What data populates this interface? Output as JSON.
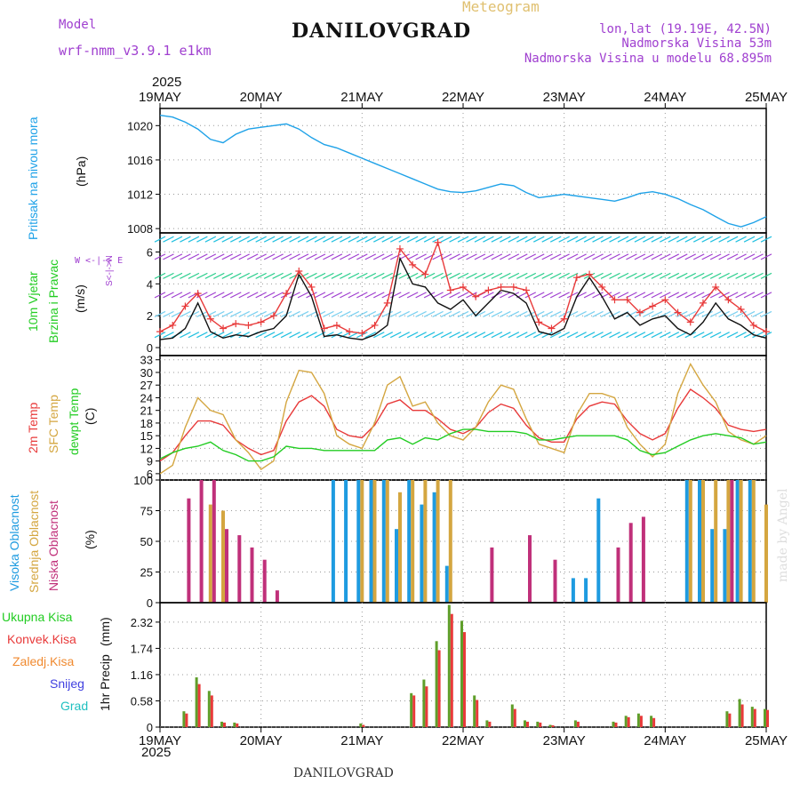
{
  "header": {
    "model_label": "Model",
    "model_name": "wrf-nmm_v3.9.1 e1km",
    "location_title": "DANILOVGRAD",
    "meteogram_label": "Meteogram",
    "lonlat": "lon,lat (19.19E, 42.5N)",
    "altitude": "Nadmorska Visina 53m",
    "model_altitude": "Nadmorska Visina u modelu 68.895m",
    "credit": "made by Angel",
    "footer_location": "DANILOVGRAD",
    "year_top": "2025",
    "year_bottom": "2025"
  },
  "colors": {
    "pressure": "#1fa2e8",
    "temp2m": "#e83a3a",
    "sfc_temp": "#d4a640",
    "dewpoint": "#22cc22",
    "high_cloud": "#1e9be0",
    "mid_cloud": "#d4a640",
    "low_cloud": "#c0307a",
    "total_precip": "#5f9e2a",
    "convective": "#e83a3a",
    "freezing": "#f08a30",
    "snow": "#4040e0",
    "hail": "#20c0c0",
    "wind_speed": "#111111",
    "gust": "#e83a3a",
    "purple_text": "#a040d0"
  },
  "chart_data": [
    {
      "type": "line",
      "panel": "pressure",
      "ylabel_name": "Pritisak na nivou mora",
      "unit": "(hPa)",
      "x_ticks": [
        "19MAY",
        "20MAY",
        "21MAY",
        "22MAY",
        "23MAY",
        "24MAY",
        "25MAY"
      ],
      "ylim": [
        1007.5,
        1022
      ],
      "yticks": [
        1008,
        1012,
        1016,
        1020
      ],
      "grid": true,
      "x_hours": [
        0,
        3,
        6,
        9,
        12,
        15,
        18,
        21,
        24,
        27,
        30,
        33,
        36,
        39,
        42,
        45,
        48,
        51,
        54,
        57,
        60,
        63,
        66,
        69,
        72,
        75,
        78,
        81,
        84,
        87,
        90,
        93,
        96,
        99,
        102,
        105,
        108,
        111,
        114,
        117,
        120,
        123,
        126,
        129,
        132,
        135,
        138,
        141,
        144
      ],
      "series": [
        {
          "values": [
            1021.2,
            1021.0,
            1020.4,
            1019.6,
            1018.4,
            1018.0,
            1019.0,
            1019.6,
            1019.8,
            1020.0,
            1020.2,
            1019.6,
            1018.6,
            1017.8,
            1017.4,
            1016.8,
            1016.2,
            1015.6,
            1015.0,
            1014.4,
            1013.8,
            1013.2,
            1012.6,
            1012.3,
            1012.2,
            1012.4,
            1012.8,
            1013.2,
            1013.0,
            1012.2,
            1011.6,
            1011.8,
            1012.0,
            1011.8,
            1011.6,
            1011.4,
            1011.2,
            1011.6,
            1012.1,
            1012.3,
            1012.0,
            1011.5,
            1010.8,
            1010.2,
            1009.4,
            1008.6,
            1008.2,
            1008.7,
            1009.4
          ]
        }
      ]
    },
    {
      "type": "line",
      "panel": "wind",
      "ylabel_name": "10m Vjetar",
      "ylabel_name2": "Brzina i Pravac",
      "unit": "(m/s)",
      "compass": "W <-|-> E",
      "compass2": "S<-|->N",
      "ylim": [
        -0.5,
        7.2
      ],
      "yticks": [
        0,
        2,
        4,
        6
      ],
      "grid": true,
      "x_hours": [
        0,
        3,
        6,
        9,
        12,
        15,
        18,
        21,
        24,
        27,
        30,
        33,
        36,
        39,
        42,
        45,
        48,
        51,
        54,
        57,
        60,
        63,
        66,
        69,
        72,
        75,
        78,
        81,
        84,
        87,
        90,
        93,
        96,
        99,
        102,
        105,
        108,
        111,
        114,
        117,
        120,
        123,
        126,
        129,
        132,
        135,
        138,
        141,
        144
      ],
      "series": [
        {
          "name": "speed",
          "values": [
            0.5,
            0.6,
            1.2,
            2.8,
            1.0,
            0.6,
            0.8,
            0.7,
            1.0,
            1.2,
            2.0,
            4.6,
            3.2,
            0.7,
            0.8,
            0.6,
            0.5,
            0.8,
            1.4,
            5.6,
            4.0,
            3.8,
            2.8,
            2.4,
            3.0,
            2.0,
            2.8,
            3.6,
            3.4,
            2.8,
            1.0,
            0.8,
            1.2,
            3.2,
            4.4,
            3.2,
            1.8,
            2.2,
            1.4,
            1.8,
            2.0,
            1.2,
            0.8,
            1.6,
            2.8,
            1.8,
            1.4,
            0.8,
            0.6
          ]
        },
        {
          "name": "gust",
          "values": [
            1.0,
            1.4,
            2.6,
            3.4,
            1.8,
            1.2,
            1.5,
            1.4,
            1.6,
            2.0,
            3.4,
            4.8,
            3.8,
            1.2,
            1.4,
            1.0,
            0.9,
            1.4,
            2.8,
            6.2,
            5.2,
            4.6,
            6.6,
            3.6,
            3.8,
            3.2,
            3.6,
            3.8,
            3.8,
            3.6,
            1.6,
            1.2,
            1.8,
            4.4,
            4.6,
            3.8,
            3.0,
            3.0,
            2.2,
            2.6,
            3.0,
            2.2,
            1.6,
            2.8,
            3.8,
            3.0,
            2.4,
            1.4,
            1.0
          ]
        }
      ]
    },
    {
      "type": "line",
      "panel": "temperature",
      "ylabel_name": "2m Temp",
      "ylabel_name2": "SFC Temp",
      "ylabel_name3": "dewpt Temp",
      "unit": "(C)",
      "ylim": [
        4.5,
        34
      ],
      "yticks": [
        6,
        9,
        12,
        15,
        18,
        21,
        24,
        27,
        30,
        33
      ],
      "grid": true,
      "x_hours": [
        0,
        3,
        6,
        9,
        12,
        15,
        18,
        21,
        24,
        27,
        30,
        33,
        36,
        39,
        42,
        45,
        48,
        51,
        54,
        57,
        60,
        63,
        66,
        69,
        72,
        75,
        78,
        81,
        84,
        87,
        90,
        93,
        96,
        99,
        102,
        105,
        108,
        111,
        114,
        117,
        120,
        123,
        126,
        129,
        132,
        135,
        138,
        141,
        144
      ],
      "series": [
        {
          "name": "2m Temp",
          "values": [
            9,
            11,
            15,
            18.5,
            18.5,
            17.5,
            14,
            12,
            10.5,
            11.5,
            18.5,
            23,
            24.5,
            22,
            16.5,
            15,
            14.5,
            17.5,
            22.5,
            23.5,
            21,
            21,
            19,
            16.5,
            15.5,
            17,
            20.5,
            22.5,
            21.5,
            17.5,
            14.5,
            13.5,
            13.5,
            19,
            22,
            23,
            22.5,
            18.5,
            15.5,
            14,
            15.5,
            21.5,
            26,
            24,
            21.5,
            17.5,
            16.5,
            16,
            16.5
          ]
        },
        {
          "name": "SFC Temp",
          "values": [
            6,
            8,
            17,
            24,
            21,
            20,
            14,
            11,
            7,
            9,
            23,
            30.5,
            30,
            25,
            15,
            13,
            12,
            18,
            27,
            29,
            22,
            23,
            18,
            15,
            14,
            17,
            23,
            27,
            26,
            19,
            13,
            12,
            11,
            20,
            25,
            25,
            24,
            17,
            13,
            10,
            13,
            25,
            32,
            27,
            23,
            16,
            14,
            13,
            15
          ]
        },
        {
          "name": "dewpt Temp",
          "values": [
            9.5,
            11,
            12,
            12.5,
            13.5,
            11.5,
            10.5,
            9,
            9,
            10,
            12.5,
            12,
            12,
            11.5,
            11.5,
            11.5,
            11.5,
            11.5,
            14,
            14.5,
            13,
            14.5,
            14,
            15.5,
            16.5,
            16.5,
            16,
            16,
            16,
            15.5,
            14,
            14,
            14.5,
            15,
            15,
            15,
            15,
            14,
            11.5,
            10.5,
            11,
            12.5,
            14,
            15,
            15.5,
            15,
            14.5,
            13,
            13.5
          ]
        }
      ]
    },
    {
      "type": "bar",
      "panel": "clouds",
      "ylabel_name": "Visoka Oblacnost",
      "ylabel_name2": "Srednja Oblacnost",
      "ylabel_name3": "Niska Oblacnost",
      "unit": "(%)",
      "ylim": [
        0,
        100
      ],
      "yticks": [
        0,
        25,
        50,
        75,
        100
      ],
      "grid": true,
      "x_hours": [
        0,
        3,
        6,
        9,
        12,
        15,
        18,
        21,
        24,
        27,
        30,
        33,
        36,
        39,
        42,
        45,
        48,
        51,
        54,
        57,
        60,
        63,
        66,
        69,
        72,
        75,
        78,
        81,
        84,
        87,
        90,
        93,
        96,
        99,
        102,
        105,
        108,
        111,
        114,
        117,
        120,
        123,
        126,
        129,
        132,
        135,
        138,
        141,
        144
      ],
      "series": [
        {
          "name": "Visoka Oblacnost",
          "values": [
            0,
            0,
            0,
            0,
            0,
            0,
            0,
            0,
            0,
            0,
            0,
            0,
            0,
            0,
            100,
            100,
            100,
            100,
            100,
            60,
            100,
            80,
            90,
            30,
            0,
            0,
            0,
            0,
            0,
            0,
            0,
            0,
            0,
            20,
            20,
            85,
            0,
            0,
            0,
            0,
            0,
            0,
            100,
            100,
            60,
            60,
            100,
            100,
            0
          ]
        },
        {
          "name": "Srednja Oblacnost",
          "values": [
            0,
            0,
            0,
            0,
            80,
            75,
            0,
            0,
            0,
            0,
            0,
            0,
            0,
            0,
            0,
            0,
            100,
            100,
            100,
            90,
            100,
            100,
            100,
            100,
            0,
            0,
            0,
            0,
            0,
            0,
            0,
            0,
            0,
            0,
            0,
            0,
            0,
            0,
            0,
            0,
            0,
            0,
            100,
            100,
            100,
            100,
            100,
            100,
            80
          ]
        },
        {
          "name": "Niska Oblacnost",
          "values": [
            0,
            0,
            85,
            100,
            100,
            60,
            55,
            45,
            35,
            10,
            0,
            0,
            0,
            0,
            0,
            0,
            0,
            0,
            0,
            0,
            0,
            0,
            0,
            0,
            0,
            0,
            45,
            0,
            0,
            55,
            0,
            35,
            0,
            0,
            0,
            0,
            45,
            65,
            70,
            0,
            0,
            0,
            0,
            0,
            0,
            100,
            0,
            0,
            0
          ]
        }
      ]
    },
    {
      "type": "bar",
      "panel": "precipitation",
      "ylabel_name": "1hr Precip",
      "unit": "(mm)",
      "ylim": [
        0,
        2.75
      ],
      "yticks": [
        0,
        0.58,
        1.16,
        1.74,
        2.32
      ],
      "grid": true,
      "legend": [
        "Ukupna Kisa",
        "Konvek.Kisa",
        "Zaledj.Kisa",
        "Snijeg",
        "Grad"
      ],
      "x_hours": [
        0,
        3,
        6,
        9,
        12,
        15,
        18,
        21,
        24,
        27,
        30,
        33,
        36,
        39,
        42,
        45,
        48,
        51,
        54,
        57,
        60,
        63,
        66,
        69,
        72,
        75,
        78,
        81,
        84,
        87,
        90,
        93,
        96,
        99,
        102,
        105,
        108,
        111,
        114,
        117,
        120,
        123,
        126,
        129,
        132,
        135,
        138,
        141,
        144
      ],
      "series": [
        {
          "name": "Ukupna Kisa",
          "values": [
            0,
            0,
            0.35,
            1.1,
            0.8,
            0.12,
            0.1,
            0,
            0,
            0,
            0,
            0,
            0,
            0,
            0,
            0,
            0.08,
            0,
            0,
            0,
            0.75,
            1.05,
            1.9,
            2.7,
            2.35,
            0.7,
            0.15,
            0,
            0.5,
            0.15,
            0.12,
            0.05,
            0,
            0.15,
            0,
            0,
            0.12,
            0.25,
            0.3,
            0.25,
            0,
            0,
            0,
            0,
            0,
            0.35,
            0.62,
            0.45,
            0.4
          ]
        },
        {
          "name": "Konvek.Kisa",
          "values": [
            0,
            0,
            0.3,
            0.95,
            0.7,
            0.1,
            0.08,
            0,
            0,
            0,
            0,
            0,
            0,
            0,
            0,
            0,
            0.05,
            0,
            0,
            0,
            0.7,
            0.9,
            1.7,
            2.5,
            2.1,
            0.6,
            0.12,
            0,
            0.4,
            0.12,
            0.1,
            0.04,
            0,
            0.12,
            0,
            0,
            0.1,
            0.22,
            0.25,
            0.2,
            0,
            0,
            0,
            0,
            0,
            0.3,
            0.5,
            0.4,
            0.38
          ]
        }
      ]
    }
  ],
  "x_axis": {
    "top_ticks": [
      "19MAY",
      "20MAY",
      "21MAY",
      "22MAY",
      "23MAY",
      "24MAY",
      "25MAY"
    ],
    "bottom_ticks": [
      "19MAY",
      "20MAY",
      "21MAY",
      "22MAY",
      "23MAY",
      "24MAY",
      "25MAY"
    ]
  }
}
